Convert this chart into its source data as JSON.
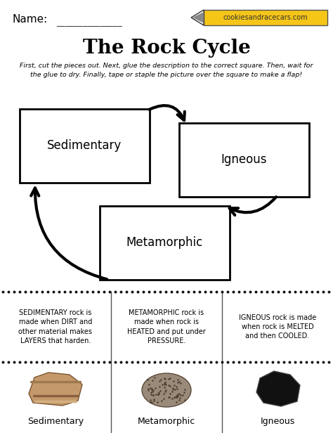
{
  "bg_color": "#ffffff",
  "title": "The Rock Cycle",
  "name_label": "Name:",
  "name_line": "_______________",
  "pencil_color": "#f5c518",
  "pencil_text": "cookiesandracecars.com",
  "instructions": "First, cut the pieces out. Next, glue the description to the correct square. Then, wait for\nthe glue to dry. Finally, tape or staple the picture over the square to make a flap!",
  "desc_texts": [
    "SEDIMENTARY rock is\nmade when DIRT and\nother material makes\nLAYERS that harden.",
    "METAMORPHIC rock is\nmade when rock is\nHEATED and put under\nPRESSURE.",
    "IGNEOUS rock is made\nwhen rock is MELTED\nand then COOLED."
  ],
  "bottom_labels": [
    "Sedimentary",
    "Metamorphic",
    "Igneous"
  ],
  "rock_colors": [
    "#c49a6c",
    "#9a8a7a",
    "#1a1a1a"
  ],
  "sedimentary_stripes": [
    "#c49a6c",
    "#a07850",
    "#d4b080",
    "#8a6040"
  ],
  "dot_color": "#111111",
  "line_color": "#000000"
}
